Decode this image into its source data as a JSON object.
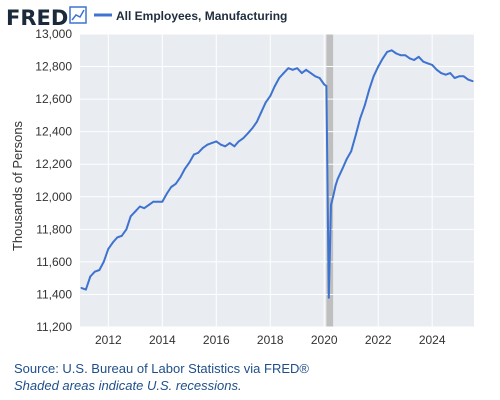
{
  "header": {
    "logo": "FRED",
    "logo_icon": "line-chart-icon",
    "legend_label": "All Employees, Manufacturing",
    "series_color": "#3f73d0"
  },
  "footer": {
    "source": "Source: U.S. Bureau of Labor Statistics via FRED®",
    "note": "Shaded areas indicate U.S. recessions."
  },
  "colors": {
    "plot_background": "#e9ecf1",
    "grid": "#ffffff",
    "recession": "#bfbfbf"
  },
  "chart_data": {
    "type": "line",
    "title": "",
    "xlabel": "",
    "ylabel": "Thousands of Persons",
    "xlim": [
      2010.95,
      2025.55
    ],
    "ylim": [
      11200,
      13000
    ],
    "y_ticks": [
      11200,
      11400,
      11600,
      11800,
      12000,
      12200,
      12400,
      12600,
      12800,
      13000
    ],
    "y_tick_labels": [
      "11,200",
      "11,400",
      "11,600",
      "11,800",
      "12,000",
      "12,200",
      "12,400",
      "12,600",
      "12,800",
      "13,000"
    ],
    "x_ticks": [
      2012,
      2014,
      2016,
      2018,
      2020,
      2022,
      2024
    ],
    "x_tick_labels": [
      "2012",
      "2014",
      "2016",
      "2018",
      "2020",
      "2022",
      "2024"
    ],
    "grid": true,
    "legend_position": "top",
    "recessions": [
      [
        2020.08,
        2020.33
      ]
    ],
    "series": [
      {
        "name": "All Employees, Manufacturing",
        "x": [
          2011.0,
          2011.17,
          2011.33,
          2011.5,
          2011.67,
          2011.83,
          2012.0,
          2012.17,
          2012.33,
          2012.5,
          2012.67,
          2012.83,
          2013.0,
          2013.17,
          2013.33,
          2013.5,
          2013.67,
          2013.83,
          2014.0,
          2014.17,
          2014.33,
          2014.5,
          2014.67,
          2014.83,
          2015.0,
          2015.17,
          2015.33,
          2015.5,
          2015.67,
          2015.83,
          2016.0,
          2016.17,
          2016.33,
          2016.5,
          2016.67,
          2016.83,
          2017.0,
          2017.17,
          2017.33,
          2017.5,
          2017.67,
          2017.83,
          2018.0,
          2018.17,
          2018.33,
          2018.5,
          2018.67,
          2018.83,
          2019.0,
          2019.17,
          2019.33,
          2019.5,
          2019.67,
          2019.83,
          2020.0,
          2020.08,
          2020.17,
          2020.25,
          2020.33,
          2020.42,
          2020.5,
          2020.67,
          2020.83,
          2021.0,
          2021.17,
          2021.33,
          2021.5,
          2021.67,
          2021.83,
          2022.0,
          2022.17,
          2022.33,
          2022.5,
          2022.67,
          2022.83,
          2023.0,
          2023.17,
          2023.33,
          2023.5,
          2023.67,
          2023.83,
          2024.0,
          2024.17,
          2024.33,
          2024.5,
          2024.67,
          2024.83,
          2025.0,
          2025.17,
          2025.33,
          2025.5
        ],
        "values": [
          11440,
          11430,
          11510,
          11540,
          11550,
          11600,
          11680,
          11720,
          11750,
          11760,
          11800,
          11880,
          11910,
          11940,
          11930,
          11950,
          11970,
          11970,
          11970,
          12020,
          12060,
          12080,
          12120,
          12170,
          12210,
          12260,
          12270,
          12300,
          12320,
          12330,
          12340,
          12320,
          12310,
          12330,
          12310,
          12340,
          12360,
          12390,
          12420,
          12460,
          12520,
          12580,
          12620,
          12680,
          12730,
          12760,
          12790,
          12780,
          12790,
          12760,
          12780,
          12760,
          12740,
          12730,
          12690,
          12680,
          11380,
          11950,
          12000,
          12070,
          12110,
          12170,
          12230,
          12280,
          12380,
          12480,
          12560,
          12660,
          12740,
          12800,
          12850,
          12890,
          12900,
          12880,
          12870,
          12870,
          12850,
          12840,
          12860,
          12830,
          12820,
          12810,
          12780,
          12760,
          12750,
          12760,
          12730,
          12740,
          12740,
          12720,
          12710
        ]
      }
    ]
  }
}
